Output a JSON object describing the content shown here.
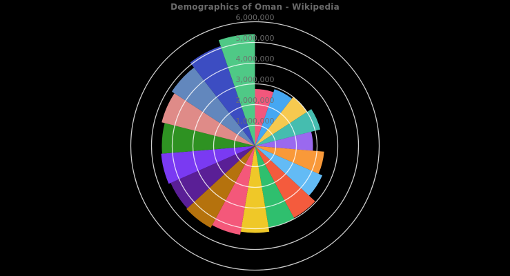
{
  "title": {
    "text": "Demographics of Oman - Wikipedia"
  },
  "colors": {
    "background": "#000000",
    "grid_line": "#ffffff",
    "tick_label": "#6f6f6f",
    "title_text": "#6a6a6a"
  },
  "chart_data": {
    "type": "polar_bar",
    "title": "Demographics of Oman - Wikipedia",
    "start_angle_deg": 0,
    "direction": "clockwise",
    "segment_angle_deg": 18.947,
    "rmin": 0,
    "rmax": 6000000,
    "grid_interval": 1000000,
    "grid_on": true,
    "legend_position": "none",
    "radial_ticks": [
      {
        "value": 1000000,
        "label": "1,000,000"
      },
      {
        "value": 2000000,
        "label": "2,000,000"
      },
      {
        "value": 3000000,
        "label": "3,000,000"
      },
      {
        "value": 4000000,
        "label": "4,000,000"
      },
      {
        "value": 5000000,
        "label": "5,000,000"
      },
      {
        "value": 6000000,
        "label": "6,000,000"
      }
    ],
    "segments": [
      {
        "index": 1,
        "value": 2750000,
        "color": "#F2577C"
      },
      {
        "index": 2,
        "value": 2900000,
        "color": "#45A7F2"
      },
      {
        "index": 3,
        "value": 3000000,
        "color": "#F6C94F"
      },
      {
        "index": 4,
        "value": 3250000,
        "color": "#45BDAF"
      },
      {
        "index": 5,
        "value": 2800000,
        "color": "#9A69EF"
      },
      {
        "index": 6,
        "value": 3350000,
        "color": "#F99939"
      },
      {
        "index": 7,
        "value": 3550000,
        "color": "#63BBF5"
      },
      {
        "index": 8,
        "value": 3950000,
        "color": "#F45B3D"
      },
      {
        "index": 9,
        "value": 4000000,
        "color": "#2FBF6E"
      },
      {
        "index": 10,
        "value": 4200000,
        "color": "#EFC828"
      },
      {
        "index": 11,
        "value": 4350000,
        "color": "#F4587A"
      },
      {
        "index": 12,
        "value": 4500000,
        "color": "#B5720D"
      },
      {
        "index": 13,
        "value": 4450000,
        "color": "#5A1F96"
      },
      {
        "index": 14,
        "value": 4550000,
        "color": "#7A3AF2"
      },
      {
        "index": 15,
        "value": 4500000,
        "color": "#2E9222"
      },
      {
        "index": 16,
        "value": 4650000,
        "color": "#DF8B88"
      },
      {
        "index": 17,
        "value": 4800000,
        "color": "#6287BD"
      },
      {
        "index": 18,
        "value": 5100000,
        "color": "#3C4DC2"
      },
      {
        "index": 19,
        "value": 5400000,
        "color": "#4FC986"
      }
    ]
  }
}
